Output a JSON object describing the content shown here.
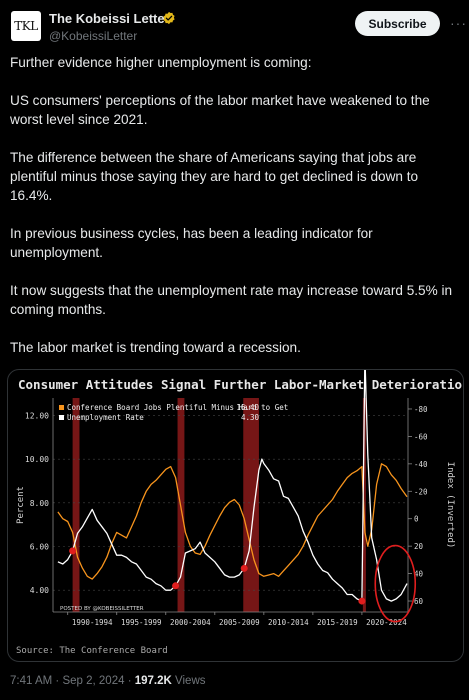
{
  "author": {
    "name": "The Kobeissi Letter",
    "handle": "@KobeissiLetter",
    "avatar_text": "TKL",
    "verified_color": "#e2b719"
  },
  "actions": {
    "subscribe_label": "Subscribe",
    "more_icon": "more-icon"
  },
  "tweet": {
    "paragraphs": [
      "Further evidence higher unemployment is coming:",
      "US consumers' perceptions of the labor market have weakened to the worst level since 2021.",
      "The difference between the share of Americans saying that jobs are plentiful minus those saying they are hard to get declined is down to 16.4%.",
      "In previous business cycles, has been a leading indicator for unemployment.",
      "It now suggests that the unemployment rate may increase toward 5.5% in coming months.",
      "The labor market is trending toward a recession."
    ]
  },
  "meta": {
    "time": "7:41 AM",
    "date": "Sep 2, 2024",
    "views_count": "197.2K",
    "views_label": "Views",
    "separator": "·"
  },
  "chart_data": {
    "type": "line",
    "title": "Consumer Attitudes Signal Further Labor-Market Deterioration",
    "source": "Source: The Conference Board",
    "watermark": "POSTED BY @KOBEISSILETTER",
    "ylabel_left": "Percent",
    "ylabel_right": "Index (Inverted)",
    "yticks_left": [
      "12.00",
      "10.00",
      "8.00",
      "6.00",
      "4.00"
    ],
    "yticks_right": [
      "-80",
      "-60",
      "-40",
      "-20",
      "0",
      "20",
      "40",
      "60"
    ],
    "xticks": [
      "1990-1994",
      "1995-1999",
      "2000-2004",
      "2005-2009",
      "2010-2014",
      "2015-2019",
      "2020-2024"
    ],
    "ylim_left": [
      3.0,
      12.8
    ],
    "ylim_right": [
      68,
      -88
    ],
    "x_range": [
      1988.5,
      2024.7
    ],
    "recessions": [
      [
        1990.5,
        1991.2
      ],
      [
        2001.2,
        2001.9
      ],
      [
        2007.9,
        2009.5
      ],
      [
        2020.1,
        2020.4
      ]
    ],
    "colors": {
      "plentiful": "#f7941d",
      "unemployment": "#ffffff",
      "recession": "#8b1a1a",
      "highlight": "#e01e1e",
      "text": "#dcdcdc"
    },
    "series": [
      {
        "name": "Conference Board Jobs Plentiful Minus Hard to Get",
        "last_value": "16.40",
        "axis": "right",
        "points": [
          [
            1989.0,
            -5
          ],
          [
            1989.5,
            0
          ],
          [
            1990.0,
            2
          ],
          [
            1990.5,
            10
          ],
          [
            1991.0,
            28
          ],
          [
            1991.5,
            36
          ],
          [
            1992.0,
            42
          ],
          [
            1992.5,
            44
          ],
          [
            1993.0,
            40
          ],
          [
            1993.5,
            35
          ],
          [
            1994.0,
            28
          ],
          [
            1994.5,
            18
          ],
          [
            1995.0,
            10
          ],
          [
            1995.5,
            12
          ],
          [
            1996.0,
            14
          ],
          [
            1996.5,
            6
          ],
          [
            1997.0,
            -2
          ],
          [
            1997.5,
            -12
          ],
          [
            1998.0,
            -20
          ],
          [
            1998.5,
            -25
          ],
          [
            1999.0,
            -28
          ],
          [
            1999.5,
            -32
          ],
          [
            2000.0,
            -36
          ],
          [
            2000.5,
            -38
          ],
          [
            2001.0,
            -30
          ],
          [
            2001.5,
            -10
          ],
          [
            2002.0,
            10
          ],
          [
            2002.5,
            20
          ],
          [
            2003.0,
            25
          ],
          [
            2003.5,
            26
          ],
          [
            2004.0,
            20
          ],
          [
            2004.5,
            12
          ],
          [
            2005.0,
            5
          ],
          [
            2005.5,
            -2
          ],
          [
            2006.0,
            -8
          ],
          [
            2006.5,
            -12
          ],
          [
            2007.0,
            -14
          ],
          [
            2007.5,
            -10
          ],
          [
            2008.0,
            0
          ],
          [
            2008.5,
            15
          ],
          [
            2009.0,
            30
          ],
          [
            2009.5,
            40
          ],
          [
            2010.0,
            42
          ],
          [
            2010.5,
            41
          ],
          [
            2011.0,
            40
          ],
          [
            2011.5,
            42
          ],
          [
            2012.0,
            38
          ],
          [
            2012.5,
            34
          ],
          [
            2013.0,
            30
          ],
          [
            2013.5,
            26
          ],
          [
            2014.0,
            20
          ],
          [
            2014.5,
            12
          ],
          [
            2015.0,
            5
          ],
          [
            2015.5,
            -2
          ],
          [
            2016.0,
            -6
          ],
          [
            2016.5,
            -10
          ],
          [
            2017.0,
            -14
          ],
          [
            2017.5,
            -20
          ],
          [
            2018.0,
            -25
          ],
          [
            2018.5,
            -30
          ],
          [
            2019.0,
            -33
          ],
          [
            2019.5,
            -35
          ],
          [
            2020.0,
            -38
          ],
          [
            2020.3,
            10
          ],
          [
            2020.6,
            20
          ],
          [
            2021.0,
            8
          ],
          [
            2021.5,
            -25
          ],
          [
            2022.0,
            -40
          ],
          [
            2022.5,
            -38
          ],
          [
            2023.0,
            -32
          ],
          [
            2023.5,
            -28
          ],
          [
            2024.0,
            -22
          ],
          [
            2024.6,
            -16
          ]
        ]
      },
      {
        "name": "Unemployment Rate",
        "last_value": "4.30",
        "axis": "left",
        "points": [
          [
            1989.0,
            5.3
          ],
          [
            1989.5,
            5.2
          ],
          [
            1990.0,
            5.4
          ],
          [
            1990.5,
            5.8
          ],
          [
            1991.0,
            6.6
          ],
          [
            1991.5,
            6.9
          ],
          [
            1992.0,
            7.3
          ],
          [
            1992.5,
            7.7
          ],
          [
            1993.0,
            7.2
          ],
          [
            1993.5,
            6.9
          ],
          [
            1994.0,
            6.6
          ],
          [
            1994.5,
            6.1
          ],
          [
            1995.0,
            5.6
          ],
          [
            1995.5,
            5.6
          ],
          [
            1996.0,
            5.5
          ],
          [
            1996.5,
            5.3
          ],
          [
            1997.0,
            5.2
          ],
          [
            1997.5,
            4.9
          ],
          [
            1998.0,
            4.6
          ],
          [
            1998.5,
            4.5
          ],
          [
            1999.0,
            4.3
          ],
          [
            1999.5,
            4.2
          ],
          [
            2000.0,
            4.0
          ],
          [
            2000.5,
            4.0
          ],
          [
            2001.0,
            4.2
          ],
          [
            2001.5,
            4.6
          ],
          [
            2002.0,
            5.7
          ],
          [
            2002.5,
            5.8
          ],
          [
            2003.0,
            5.9
          ],
          [
            2003.5,
            6.2
          ],
          [
            2004.0,
            5.7
          ],
          [
            2004.5,
            5.5
          ],
          [
            2005.0,
            5.3
          ],
          [
            2005.5,
            5.0
          ],
          [
            2006.0,
            4.7
          ],
          [
            2006.5,
            4.6
          ],
          [
            2007.0,
            4.6
          ],
          [
            2007.5,
            4.7
          ],
          [
            2008.0,
            5.0
          ],
          [
            2008.5,
            5.8
          ],
          [
            2009.0,
            7.8
          ],
          [
            2009.5,
            9.5
          ],
          [
            2009.8,
            10.0
          ],
          [
            2010.0,
            9.8
          ],
          [
            2010.5,
            9.5
          ],
          [
            2011.0,
            9.1
          ],
          [
            2011.5,
            9.0
          ],
          [
            2012.0,
            8.3
          ],
          [
            2012.5,
            8.2
          ],
          [
            2013.0,
            7.8
          ],
          [
            2013.5,
            7.4
          ],
          [
            2014.0,
            6.7
          ],
          [
            2014.5,
            6.2
          ],
          [
            2015.0,
            5.6
          ],
          [
            2015.5,
            5.2
          ],
          [
            2016.0,
            4.9
          ],
          [
            2016.5,
            4.8
          ],
          [
            2017.0,
            4.5
          ],
          [
            2017.5,
            4.3
          ],
          [
            2018.0,
            4.1
          ],
          [
            2018.5,
            3.8
          ],
          [
            2019.0,
            3.8
          ],
          [
            2019.5,
            3.6
          ],
          [
            2020.0,
            3.5
          ],
          [
            2020.3,
            14.7
          ],
          [
            2020.6,
            10.2
          ],
          [
            2021.0,
            6.4
          ],
          [
            2021.5,
            5.4
          ],
          [
            2022.0,
            4.0
          ],
          [
            2022.5,
            3.6
          ],
          [
            2023.0,
            3.5
          ],
          [
            2023.5,
            3.6
          ],
          [
            2024.0,
            3.8
          ],
          [
            2024.6,
            4.3
          ]
        ]
      }
    ]
  }
}
